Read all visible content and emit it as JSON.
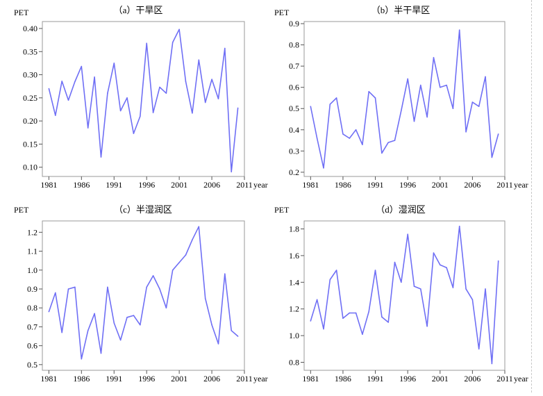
{
  "chart_data": [
    {
      "type": "line",
      "title": "（a）干旱区",
      "ylabel": "PET",
      "xlabel": "year",
      "ylim": [
        0.08,
        0.415
      ],
      "yticks": [
        0.1,
        0.15,
        0.2,
        0.25,
        0.3,
        0.35,
        0.4
      ],
      "ytick_labels": [
        "0.10",
        "0.15",
        "0.20",
        "0.25",
        "0.30",
        "0.35",
        "0.40"
      ],
      "xlim": [
        1980,
        2011
      ],
      "xticks": [
        1981,
        1986,
        1991,
        1996,
        2001,
        2006,
        2011
      ],
      "xtick_labels": [
        "1981",
        "1986",
        "1991",
        "1996",
        "2001",
        "2006",
        "2011"
      ],
      "line_color": "#6f6ff5",
      "x": [
        1981,
        1982,
        1983,
        1984,
        1985,
        1986,
        1987,
        1988,
        1989,
        1990,
        1991,
        1992,
        1993,
        1994,
        1995,
        1996,
        1997,
        1998,
        1999,
        2000,
        2001,
        2002,
        2003,
        2004,
        2005,
        2006,
        2007,
        2008,
        2009,
        2010
      ],
      "values": [
        0.27,
        0.212,
        0.286,
        0.245,
        0.285,
        0.318,
        0.185,
        0.295,
        0.122,
        0.26,
        0.325,
        0.222,
        0.25,
        0.173,
        0.21,
        0.368,
        0.218,
        0.273,
        0.26,
        0.37,
        0.398,
        0.285,
        0.217,
        0.332,
        0.24,
        0.29,
        0.248,
        0.357,
        0.09,
        0.228
      ]
    },
    {
      "type": "line",
      "title": "（b）半干旱区",
      "ylabel": "PET",
      "xlabel": "year",
      "ylim": [
        0.18,
        0.91
      ],
      "yticks": [
        0.2,
        0.3,
        0.4,
        0.5,
        0.6,
        0.7,
        0.8,
        0.9
      ],
      "ytick_labels": [
        "0.2",
        "0.3",
        "0.4",
        "0.5",
        "0.6",
        "0.7",
        "0.8",
        "0.9"
      ],
      "xlim": [
        1980,
        2011
      ],
      "xticks": [
        1981,
        1986,
        1991,
        1996,
        2001,
        2006,
        2011
      ],
      "xtick_labels": [
        "1981",
        "1986",
        "1991",
        "1996",
        "2001",
        "2006",
        "2011"
      ],
      "line_color": "#6f6ff5",
      "x": [
        1981,
        1982,
        1983,
        1984,
        1985,
        1986,
        1987,
        1988,
        1989,
        1990,
        1991,
        1992,
        1993,
        1994,
        1995,
        1996,
        1997,
        1998,
        1999,
        2000,
        2001,
        2002,
        2003,
        2004,
        2005,
        2006,
        2007,
        2008,
        2009,
        2010
      ],
      "values": [
        0.51,
        0.36,
        0.22,
        0.52,
        0.55,
        0.38,
        0.36,
        0.4,
        0.33,
        0.58,
        0.55,
        0.29,
        0.34,
        0.35,
        0.49,
        0.64,
        0.44,
        0.61,
        0.46,
        0.74,
        0.6,
        0.61,
        0.5,
        0.87,
        0.39,
        0.53,
        0.51,
        0.65,
        0.27,
        0.38
      ]
    },
    {
      "type": "line",
      "title": "（c）半湿润区",
      "ylabel": "PET",
      "xlabel": "year",
      "ylim": [
        0.47,
        1.26
      ],
      "yticks": [
        0.5,
        0.6,
        0.7,
        0.8,
        0.9,
        1.0,
        1.1,
        1.2
      ],
      "ytick_labels": [
        "0.5",
        "0.6",
        "0.7",
        "0.8",
        "0.9",
        "1.0",
        "1.1",
        "1.2"
      ],
      "xlim": [
        1980,
        2011
      ],
      "xticks": [
        1981,
        1986,
        1991,
        1996,
        2001,
        2006,
        2011
      ],
      "xtick_labels": [
        "1981",
        "1986",
        "1991",
        "1996",
        "2001",
        "2006",
        "2011"
      ],
      "line_color": "#6f6ff5",
      "x": [
        1981,
        1982,
        1983,
        1984,
        1985,
        1986,
        1987,
        1988,
        1989,
        1990,
        1991,
        1992,
        1993,
        1994,
        1995,
        1996,
        1997,
        1998,
        1999,
        2000,
        2001,
        2002,
        2003,
        2004,
        2005,
        2006,
        2007,
        2008,
        2009,
        2010
      ],
      "values": [
        0.78,
        0.88,
        0.67,
        0.9,
        0.91,
        0.53,
        0.68,
        0.77,
        0.56,
        0.91,
        0.72,
        0.63,
        0.75,
        0.76,
        0.71,
        0.91,
        0.97,
        0.9,
        0.8,
        1.0,
        1.04,
        1.08,
        1.16,
        1.23,
        0.85,
        0.71,
        0.61,
        0.98,
        0.68,
        0.65
      ]
    },
    {
      "type": "line",
      "title": "（d）湿润区",
      "ylabel": "PET",
      "xlabel": "year",
      "ylim": [
        0.74,
        1.86
      ],
      "yticks": [
        0.8,
        1.0,
        1.2,
        1.4,
        1.6,
        1.8
      ],
      "ytick_labels": [
        "0.8",
        "1.0",
        "1.2",
        "1.4",
        "1.6",
        "1.8"
      ],
      "xlim": [
        1980,
        2011
      ],
      "xticks": [
        1981,
        1986,
        1991,
        1996,
        2001,
        2006,
        2011
      ],
      "xtick_labels": [
        "1981",
        "1986",
        "1991",
        "1996",
        "2001",
        "2006",
        "2011"
      ],
      "line_color": "#6f6ff5",
      "x": [
        1981,
        1982,
        1983,
        1984,
        1985,
        1986,
        1987,
        1988,
        1989,
        1990,
        1991,
        1992,
        1993,
        1994,
        1995,
        1996,
        1997,
        1998,
        1999,
        2000,
        2001,
        2002,
        2003,
        2004,
        2005,
        2006,
        2007,
        2008,
        2009,
        2010
      ],
      "values": [
        1.11,
        1.27,
        1.05,
        1.42,
        1.49,
        1.13,
        1.17,
        1.17,
        1.01,
        1.18,
        1.49,
        1.14,
        1.1,
        1.55,
        1.4,
        1.76,
        1.37,
        1.35,
        1.07,
        1.62,
        1.53,
        1.51,
        1.36,
        1.82,
        1.35,
        1.27,
        0.9,
        1.35,
        0.79,
        1.56
      ]
    }
  ]
}
